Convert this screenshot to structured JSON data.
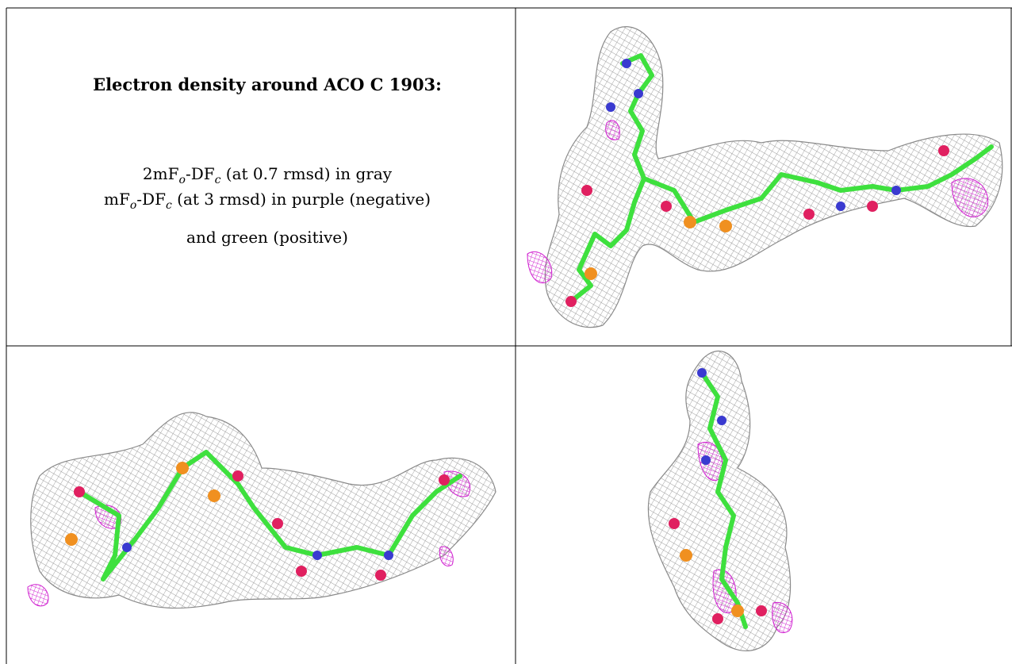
{
  "caption": {
    "title": "Electron density around ACO C 1903:",
    "lines": [
      [
        "2mF",
        "o",
        "-DF",
        "c",
        " (at 0.7 rmsd) in gray"
      ],
      [
        "mF",
        "o",
        "-DF",
        "c",
        " (at 3 rmsd) in purple (negative)"
      ],
      [
        "and green (positive)"
      ]
    ]
  }
}
